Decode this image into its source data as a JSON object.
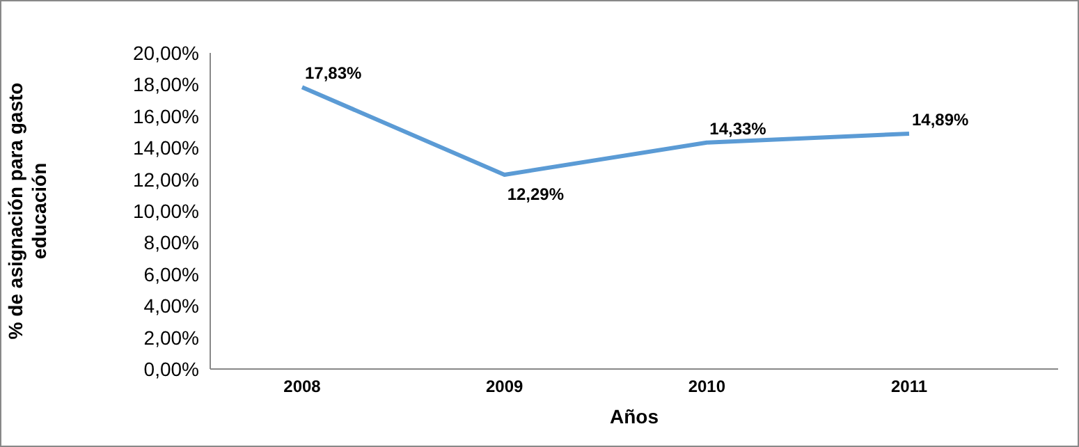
{
  "chart_data": {
    "type": "line",
    "xlabel": "Años",
    "ylabel": "% de asignación para gasto educación",
    "categories": [
      "2008",
      "2009",
      "2010",
      "2011"
    ],
    "series": [
      {
        "color": "#5b9bd5",
        "values": [
          17.83,
          12.29,
          14.33,
          14.89
        ],
        "value_labels": [
          "17,83%",
          "12,29%",
          "14,33%",
          "14,89%"
        ]
      }
    ],
    "ylim": [
      0,
      20
    ],
    "yticks": [
      {
        "value": 0,
        "label": "0,00%"
      },
      {
        "value": 2,
        "label": "2,00%"
      },
      {
        "value": 4,
        "label": "4,00%"
      },
      {
        "value": 6,
        "label": "6,00%"
      },
      {
        "value": 8,
        "label": "8,00%"
      },
      {
        "value": 10,
        "label": "10,00%"
      },
      {
        "value": 12,
        "label": "12,00%"
      },
      {
        "value": 14,
        "label": "14,00%"
      },
      {
        "value": 16,
        "label": "16,00%"
      },
      {
        "value": 18,
        "label": "18,00%"
      },
      {
        "value": 20,
        "label": "20,00%"
      }
    ],
    "grid": false,
    "legend": false,
    "marker": "none",
    "line_style": "solid"
  }
}
